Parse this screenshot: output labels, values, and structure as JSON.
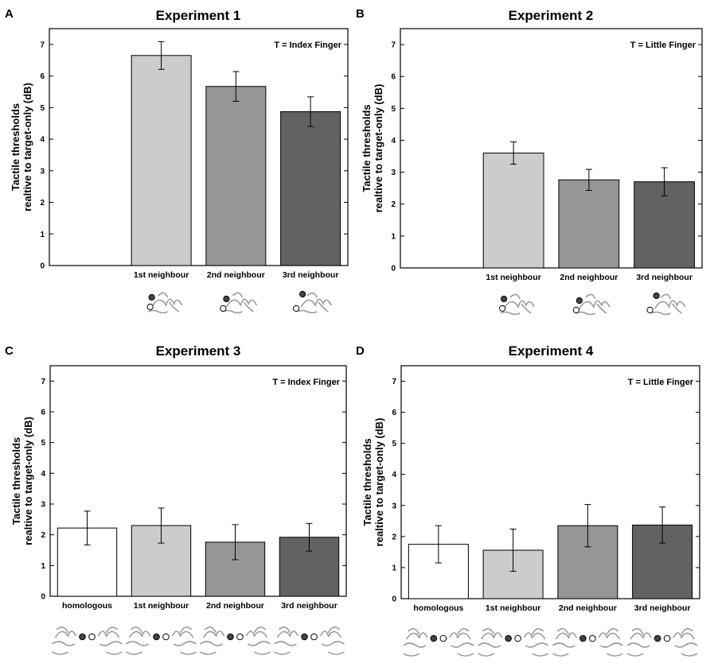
{
  "chart_data": [
    {
      "panel": "A",
      "type": "bar",
      "title": "Experiment 1",
      "annotation": "T = Index Finger",
      "ylabel": [
        "Tactile thresholds",
        "realtive to target-only (dB)"
      ],
      "ylim": [
        0,
        7.5
      ],
      "yticks": [
        0,
        1,
        2,
        3,
        4,
        5,
        6,
        7
      ],
      "categories": [
        "",
        "1st neighbour",
        "2nd neighbour",
        "3rd neighbour"
      ],
      "values": [
        null,
        6.65,
        5.67,
        4.87
      ],
      "errors": [
        null,
        0.44,
        0.47,
        0.47
      ],
      "colors": [
        "#ffffff",
        "#cccccc",
        "#969696",
        "#626262"
      ]
    },
    {
      "panel": "B",
      "type": "bar",
      "title": "Experiment 2",
      "annotation": "T = Little Finger",
      "ylabel": [
        "Tactile thresholds",
        "realtive to target-only (dB)"
      ],
      "ylim": [
        0,
        7.5
      ],
      "yticks": [
        0,
        1,
        2,
        3,
        4,
        5,
        6,
        7
      ],
      "categories": [
        "",
        "1st neighbour",
        "2nd neighbour",
        "3rd neighbour"
      ],
      "values": [
        null,
        3.6,
        2.76,
        2.7
      ],
      "errors": [
        null,
        0.35,
        0.33,
        0.44
      ],
      "colors": [
        "#ffffff",
        "#cccccc",
        "#969696",
        "#626262"
      ]
    },
    {
      "panel": "C",
      "type": "bar",
      "title": "Experiment 3",
      "annotation": "T = Index Finger",
      "ylabel": [
        "Tactile thresholds",
        "realtive to target-only (dB)"
      ],
      "ylim": [
        0,
        7.5
      ],
      "yticks": [
        0,
        1,
        2,
        3,
        4,
        5,
        6,
        7
      ],
      "categories": [
        "homologous",
        "1st neighbour",
        "2nd neighbour",
        "3rd neighbour"
      ],
      "values": [
        2.22,
        2.3,
        1.76,
        1.92
      ],
      "errors": [
        0.55,
        0.57,
        0.57,
        0.45
      ],
      "colors": [
        "#ffffff",
        "#cccccc",
        "#969696",
        "#626262"
      ]
    },
    {
      "panel": "D",
      "type": "bar",
      "title": "Experiment 4",
      "annotation": "T = Little Finger",
      "ylabel": [
        "Tactile thresholds",
        "realtive to target-only (dB)"
      ],
      "ylim": [
        0,
        7.5
      ],
      "yticks": [
        0,
        1,
        2,
        3,
        4,
        5,
        6,
        7
      ],
      "categories": [
        "homologous",
        "1st neighbour",
        "2nd neighbour",
        "3rd neighbour"
      ],
      "values": [
        1.75,
        1.56,
        2.35,
        2.37
      ],
      "errors": [
        0.6,
        0.68,
        0.68,
        0.58
      ],
      "colors": [
        "#ffffff",
        "#cccccc",
        "#969696",
        "#626262"
      ]
    }
  ]
}
